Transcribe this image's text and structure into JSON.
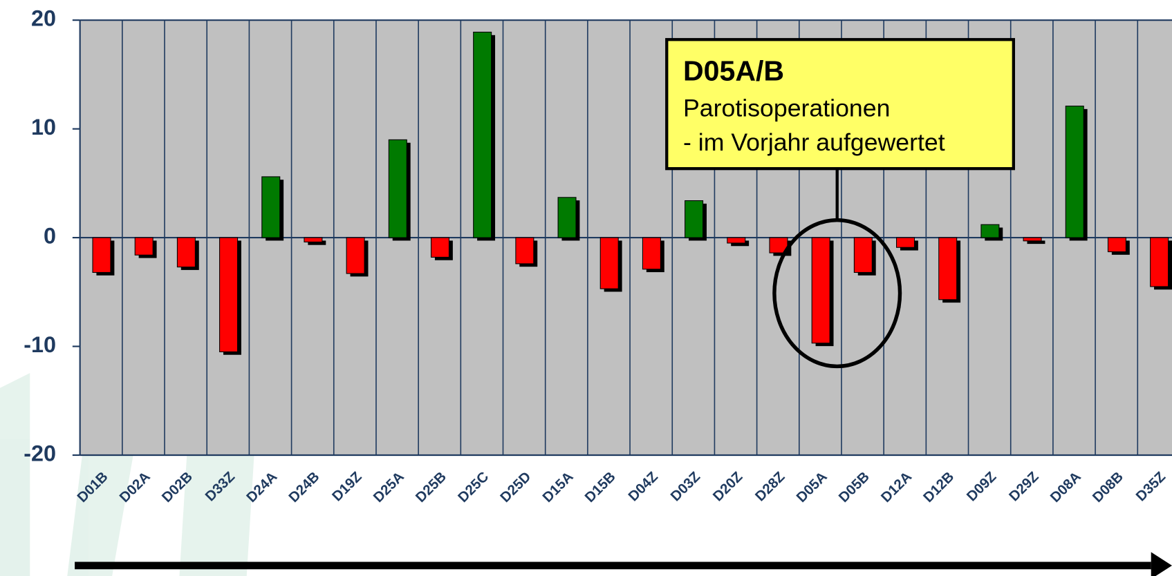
{
  "chart_data": {
    "type": "bar",
    "categories": [
      "D01B",
      "D02A",
      "D02B",
      "D33Z",
      "D24A",
      "D24B",
      "D19Z",
      "D25A",
      "D25B",
      "D25C",
      "D25D",
      "D15A",
      "D15B",
      "D04Z",
      "D03Z",
      "D20Z",
      "D28Z",
      "D05A",
      "D05B",
      "D12A",
      "D12B",
      "D09Z",
      "D29Z",
      "D08A",
      "D08B",
      "D35Z"
    ],
    "values": [
      -3.2,
      -1.6,
      -2.7,
      -10.5,
      5.6,
      -0.4,
      -3.3,
      9.0,
      -1.8,
      18.9,
      -2.4,
      3.7,
      -4.7,
      -2.9,
      3.4,
      -0.5,
      -1.4,
      -9.7,
      -3.2,
      -0.9,
      -5.7,
      1.2,
      -0.3,
      12.1,
      -1.3,
      -4.5
    ],
    "color_positive": "#007a00",
    "color_negative": "#ff0000",
    "ylim": [
      -20,
      20
    ],
    "yticks": [
      -20,
      -10,
      0,
      10,
      20
    ],
    "grid": true,
    "annotation": {
      "title": "D05A/B",
      "lines": [
        "Parotisoperationen",
        "- im Vorjahr aufgewertet"
      ]
    }
  }
}
